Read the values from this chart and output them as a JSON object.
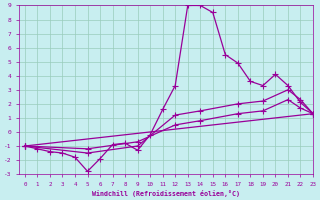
{
  "xlabel": "Windchill (Refroidissement éolien,°C)",
  "xlim": [
    -0.5,
    23
  ],
  "ylim": [
    -3,
    9
  ],
  "xticks": [
    0,
    1,
    2,
    3,
    4,
    5,
    6,
    7,
    8,
    9,
    10,
    11,
    12,
    13,
    14,
    15,
    16,
    17,
    18,
    19,
    20,
    21,
    22,
    23
  ],
  "yticks": [
    -3,
    -2,
    -1,
    0,
    1,
    2,
    3,
    4,
    5,
    6,
    7,
    8,
    9
  ],
  "bg_color": "#c8eef0",
  "line_color": "#990099",
  "grid_color": "#99ccbb",
  "line1_x": [
    0,
    1,
    2,
    3,
    4,
    5,
    6,
    7,
    8,
    9,
    10,
    11,
    12,
    13,
    14,
    15,
    16,
    17,
    18,
    19,
    20,
    21,
    22,
    23
  ],
  "line1_y": [
    -1.0,
    -1.2,
    -1.4,
    -1.5,
    -1.8,
    -2.8,
    -1.9,
    -0.9,
    -0.8,
    -1.3,
    -0.2,
    1.6,
    3.3,
    9.0,
    9.0,
    8.5,
    5.5,
    4.9,
    3.6,
    3.3,
    4.1,
    3.3,
    2.1,
    1.3
  ],
  "line2_x": [
    0,
    5,
    9,
    12,
    14,
    17,
    19,
    21,
    22,
    23
  ],
  "line2_y": [
    -1.0,
    -1.5,
    -1.0,
    1.2,
    1.5,
    2.0,
    2.2,
    3.0,
    2.3,
    1.3
  ],
  "line3_x": [
    0,
    5,
    9,
    12,
    14,
    17,
    19,
    21,
    22,
    23
  ],
  "line3_y": [
    -1.0,
    -1.2,
    -0.7,
    0.5,
    0.8,
    1.3,
    1.5,
    2.3,
    1.7,
    1.3
  ],
  "line4_x": [
    0,
    23
  ],
  "line4_y": [
    -1.0,
    1.3
  ],
  "marker": "+",
  "markersize": 4.0,
  "linewidth": 0.9
}
